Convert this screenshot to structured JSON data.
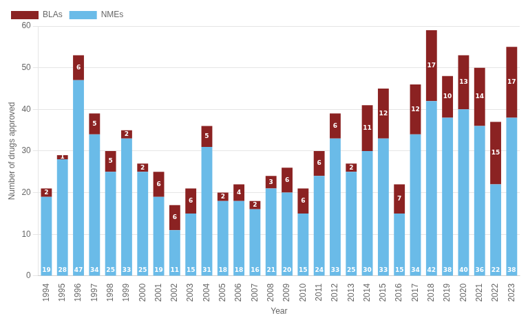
{
  "chart_data": {
    "type": "bar",
    "stacked": true,
    "categories": [
      "1994",
      "1995",
      "1996",
      "1997",
      "1998",
      "1999",
      "2000",
      "2001",
      "2002",
      "2003",
      "2004",
      "2005",
      "2006",
      "2007",
      "2008",
      "2009",
      "2010",
      "2011",
      "2012",
      "2013",
      "2014",
      "2015",
      "2016",
      "2017",
      "2018",
      "2019",
      "2020",
      "2021",
      "2022",
      "2023"
    ],
    "series": [
      {
        "name": "NMEs",
        "color": "#6ABBE8",
        "values": [
          19,
          28,
          47,
          34,
          25,
          33,
          25,
          19,
          11,
          15,
          31,
          18,
          18,
          16,
          21,
          20,
          15,
          24,
          33,
          25,
          30,
          33,
          15,
          34,
          42,
          38,
          40,
          36,
          22,
          38
        ]
      },
      {
        "name": "BLAs",
        "color": "#8B2222",
        "values": [
          2,
          1,
          6,
          5,
          5,
          2,
          2,
          6,
          6,
          6,
          5,
          2,
          4,
          2,
          3,
          6,
          6,
          6,
          6,
          2,
          11,
          12,
          7,
          12,
          17,
          10,
          13,
          14,
          15,
          17
        ]
      }
    ],
    "xlabel": "Year",
    "ylabel": "Number of drugs approved",
    "ylim": [
      0,
      60
    ],
    "yticks": [
      0,
      10,
      20,
      30,
      40,
      50,
      60
    ],
    "grid": true,
    "legend": "upper left",
    "data_labels": true
  }
}
